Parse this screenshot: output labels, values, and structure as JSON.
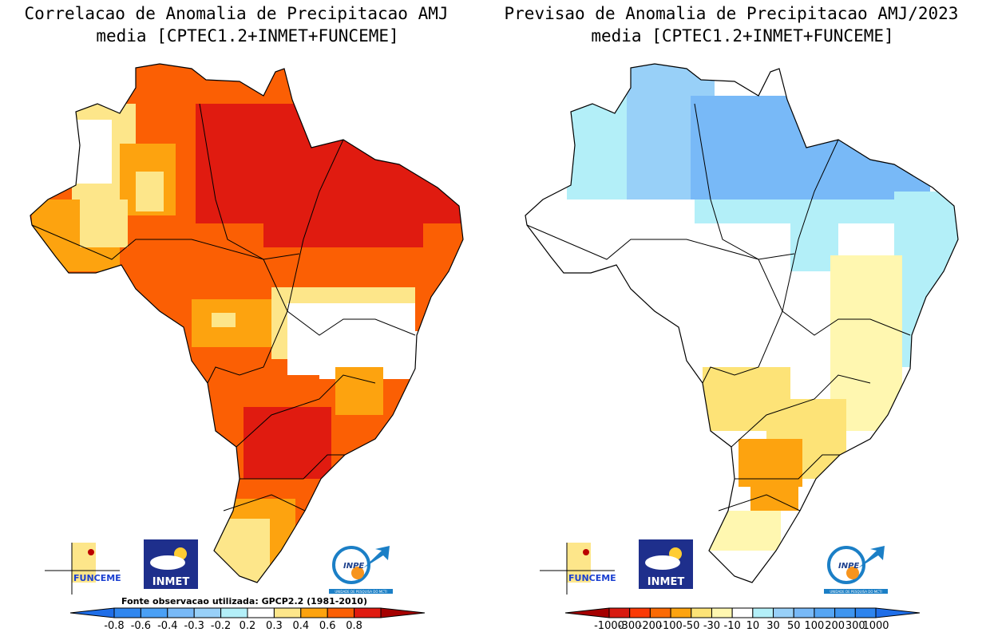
{
  "left_map": {
    "title_line1": "Correlacao de Anomalia de Precipitacao AMJ",
    "title_line2": "media [CPTEC1.2+INMET+FUNCEME]",
    "source_note": "Fonte observacao utilizada: GPCP2.2 (1981-2010)",
    "colorbar": {
      "labels": [
        "-0.8",
        "-0.6",
        "-0.4",
        "-0.3",
        "-0.2",
        "0.2",
        "0.3",
        "0.4",
        "0.6",
        "0.8"
      ],
      "colors": [
        "#2f86ef",
        "#4aa0f5",
        "#78b9f7",
        "#98d0f8",
        "#b3eff8",
        "#ffffff",
        "#fde68a",
        "#fda30f",
        "#fb5f04",
        "#e01b10"
      ],
      "low_extend_color": "#1f6ee8",
      "high_extend_color": "#a50000"
    }
  },
  "right_map": {
    "title_line1": "Previsao de Anomalia de Precipitacao AMJ/2023",
    "title_line2": "media [CPTEC1.2+INMET+FUNCEME]",
    "colorbar": {
      "labels": [
        "-1000",
        "-300",
        "-200",
        "-100",
        "-50",
        "-30",
        "-10",
        "10",
        "30",
        "50",
        "100",
        "200",
        "300",
        "1000"
      ],
      "colors": [
        "#d81b10",
        "#fb3a06",
        "#fb6a04",
        "#fda30f",
        "#fde377",
        "#fff7b0",
        "#ffffff",
        "#b3eff8",
        "#98d0f8",
        "#78b9f7",
        "#55a5f3",
        "#3e95ef",
        "#2d84ee"
      ],
      "low_extend_color": "#a50000",
      "high_extend_color": "#1f6ee8"
    }
  },
  "logos": {
    "funceme": "FUNCEME",
    "inmet": "INMET",
    "inpe": "INPE",
    "inpe_caption": "UNIDADE DE PESQUISA DO MCTI"
  }
}
